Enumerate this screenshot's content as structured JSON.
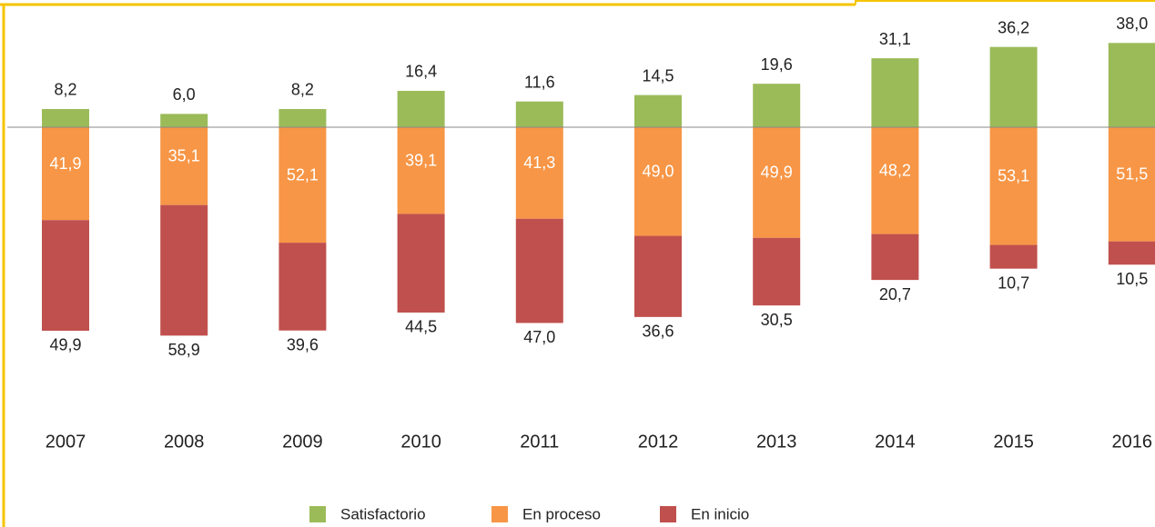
{
  "chart_data": {
    "type": "diverging_bar",
    "categories": [
      "2007",
      "2008",
      "2009",
      "2010",
      "2011",
      "2012",
      "2013",
      "2014",
      "2015",
      "2016"
    ],
    "series": [
      {
        "name": "Satisfactorio",
        "color": "#9bbb59",
        "values": [
          8.2,
          6.0,
          8.2,
          16.4,
          11.6,
          14.5,
          19.6,
          31.1,
          36.2,
          38.0
        ],
        "value_labels": [
          "8,2",
          "6,0",
          "8,2",
          "16,4",
          "11,6",
          "14,5",
          "19,6",
          "31,1",
          "36,2",
          "38,0"
        ]
      },
      {
        "name": "En proceso",
        "color": "#f79646",
        "values": [
          41.9,
          35.1,
          52.1,
          39.1,
          41.3,
          49.0,
          49.9,
          48.2,
          53.1,
          51.5
        ],
        "value_labels": [
          "41,9",
          "35,1",
          "52,1",
          "39,1",
          "41,3",
          "49,0",
          "49,9",
          "48,2",
          "53,1",
          "51,5"
        ]
      },
      {
        "name": "En inicio",
        "color": "#c0504d",
        "values": [
          49.9,
          58.9,
          39.6,
          44.5,
          47.0,
          36.6,
          30.5,
          20.7,
          10.7,
          10.5
        ],
        "value_labels": [
          "49,9",
          "58,9",
          "39,6",
          "44,5",
          "47,0",
          "36,6",
          "30,5",
          "20,7",
          "10,7",
          "10,5"
        ]
      }
    ]
  }
}
